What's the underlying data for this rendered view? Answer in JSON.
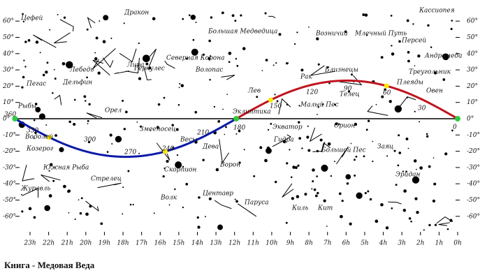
{
  "caption": "Книга - Медовая Веда",
  "dec_labels": [
    "60°",
    "50°",
    "40°",
    "30°",
    "20°",
    "10°",
    "0°",
    "-10°",
    "-20°",
    "-30°",
    "-40°",
    "-50°",
    "-60°"
  ],
  "ra_labels": [
    "23h",
    "22h",
    "21h",
    "20h",
    "19h",
    "18h",
    "17h",
    "16h",
    "15h",
    "14h",
    "13h",
    "12h",
    "11h",
    "10h",
    "9h",
    "8h",
    "7h",
    "6h",
    "5h",
    "4h",
    "3h",
    "2h",
    "1h",
    "0h"
  ],
  "ecliptic_degrees": [
    "360",
    "330",
    "300",
    "270",
    "240",
    "210",
    "180",
    "150",
    "120",
    "90",
    "60",
    "30",
    "0"
  ],
  "constellations": [
    "Цефей",
    "Дракон",
    "Большая Медведица",
    "Возничий",
    "Млечный Путь",
    "Кассиопея",
    "Лебедь",
    "Лира",
    "Северная Корона",
    "Волопас",
    "Персей",
    "Андромеда",
    "Дельфин",
    "Геркулес",
    "Близнецы",
    "Рак",
    "Треугольник",
    "Пегас",
    "Рыбы",
    "Орел",
    "Змееносец",
    "Лев",
    "Телец",
    "Плеяды",
    "Овен",
    "Водолей",
    "Козерог",
    "Весы",
    "Дева",
    "Эклиптика",
    "Малый Пес",
    "Экватор",
    "Гидра",
    "Орион",
    "Кит",
    "Южная Рыба",
    "Стрелец",
    "Скорпион",
    "Ворон",
    "Большой Пес",
    "Заяц",
    "Эридан",
    "Журавль",
    "Волк",
    "Центавр",
    "Паруса",
    "Киль"
  ]
}
